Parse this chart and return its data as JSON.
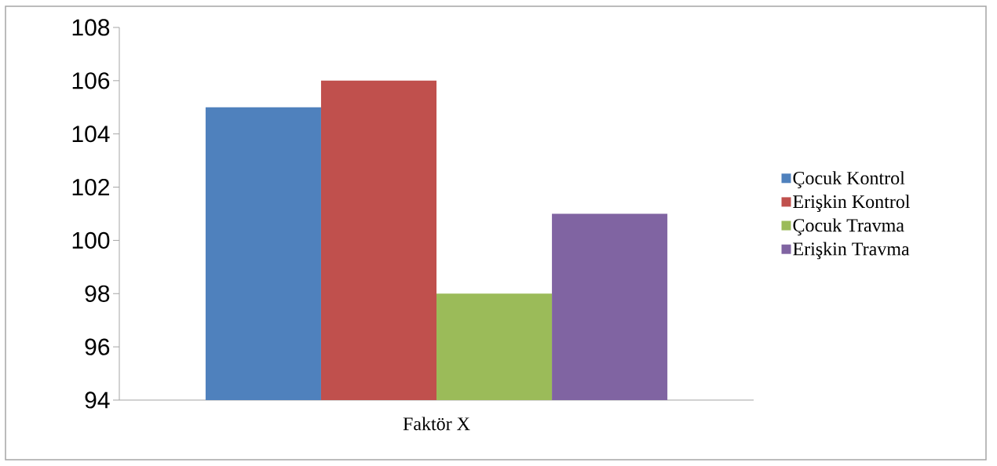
{
  "chart_data": {
    "type": "bar",
    "categories": [
      "Faktör X"
    ],
    "series": [
      {
        "name": "Çocuk Kontrol",
        "color": "#4f81bd",
        "values": [
          105
        ]
      },
      {
        "name": "Erişkin Kontrol",
        "color": "#c0504d",
        "values": [
          106
        ]
      },
      {
        "name": "Çocuk Travma",
        "color": "#9bbb59",
        "values": [
          98
        ]
      },
      {
        "name": "Erişkin Travma",
        "color": "#8064a2",
        "values": [
          101
        ]
      }
    ],
    "ylim": [
      94,
      108
    ],
    "yticks": [
      94,
      96,
      98,
      100,
      102,
      104,
      106,
      108
    ],
    "legend": "right"
  }
}
